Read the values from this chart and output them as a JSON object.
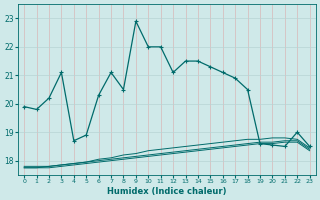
{
  "xlabel": "Humidex (Indice chaleur)",
  "background_color": "#cfe9e9",
  "line_color": "#006b6b",
  "grid_color": "#b8d4d4",
  "xlim": [
    -0.5,
    23.5
  ],
  "ylim": [
    17.5,
    23.5
  ],
  "yticks": [
    18,
    19,
    20,
    21,
    22,
    23
  ],
  "xticks": [
    0,
    1,
    2,
    3,
    4,
    5,
    6,
    7,
    8,
    9,
    10,
    11,
    12,
    13,
    14,
    15,
    16,
    17,
    18,
    19,
    20,
    21,
    22,
    23
  ],
  "main_x": [
    0,
    1,
    2,
    3,
    4,
    5,
    6,
    7,
    8,
    9,
    10,
    11,
    12,
    13,
    14,
    15,
    16,
    17,
    18,
    19,
    20,
    21,
    22,
    23
  ],
  "main_y": [
    19.9,
    19.8,
    20.2,
    21.1,
    18.7,
    18.9,
    20.3,
    21.1,
    20.5,
    22.9,
    22.0,
    22.0,
    21.1,
    21.5,
    21.5,
    21.3,
    21.1,
    20.9,
    20.5,
    18.6,
    18.55,
    18.5,
    19.0,
    18.5
  ],
  "line2_x": [
    0,
    1,
    2,
    3,
    4,
    5,
    6,
    7,
    8,
    9,
    10,
    11,
    12,
    13,
    14,
    15,
    16,
    17,
    18,
    19,
    20,
    21,
    22,
    23
  ],
  "line2_y": [
    17.8,
    17.8,
    17.8,
    17.85,
    17.9,
    17.95,
    18.05,
    18.1,
    18.2,
    18.25,
    18.35,
    18.4,
    18.45,
    18.5,
    18.55,
    18.6,
    18.65,
    18.7,
    18.75,
    18.75,
    18.8,
    18.8,
    18.75,
    18.45
  ],
  "line3_x": [
    0,
    1,
    2,
    3,
    4,
    5,
    6,
    7,
    8,
    9,
    10,
    11,
    12,
    13,
    14,
    15,
    16,
    17,
    18,
    19,
    20,
    21,
    22,
    23
  ],
  "line3_y": [
    17.75,
    17.75,
    17.8,
    17.85,
    17.9,
    17.95,
    18.0,
    18.05,
    18.1,
    18.15,
    18.2,
    18.25,
    18.3,
    18.35,
    18.4,
    18.45,
    18.5,
    18.55,
    18.6,
    18.65,
    18.65,
    18.7,
    18.7,
    18.4
  ],
  "line4_x": [
    0,
    1,
    2,
    3,
    4,
    5,
    6,
    7,
    8,
    9,
    10,
    11,
    12,
    13,
    14,
    15,
    16,
    17,
    18,
    19,
    20,
    21,
    22,
    23
  ],
  "line4_y": [
    17.75,
    17.75,
    17.75,
    17.8,
    17.85,
    17.9,
    17.95,
    18.0,
    18.05,
    18.1,
    18.15,
    18.2,
    18.25,
    18.3,
    18.35,
    18.4,
    18.45,
    18.5,
    18.55,
    18.6,
    18.6,
    18.65,
    18.65,
    18.35
  ]
}
